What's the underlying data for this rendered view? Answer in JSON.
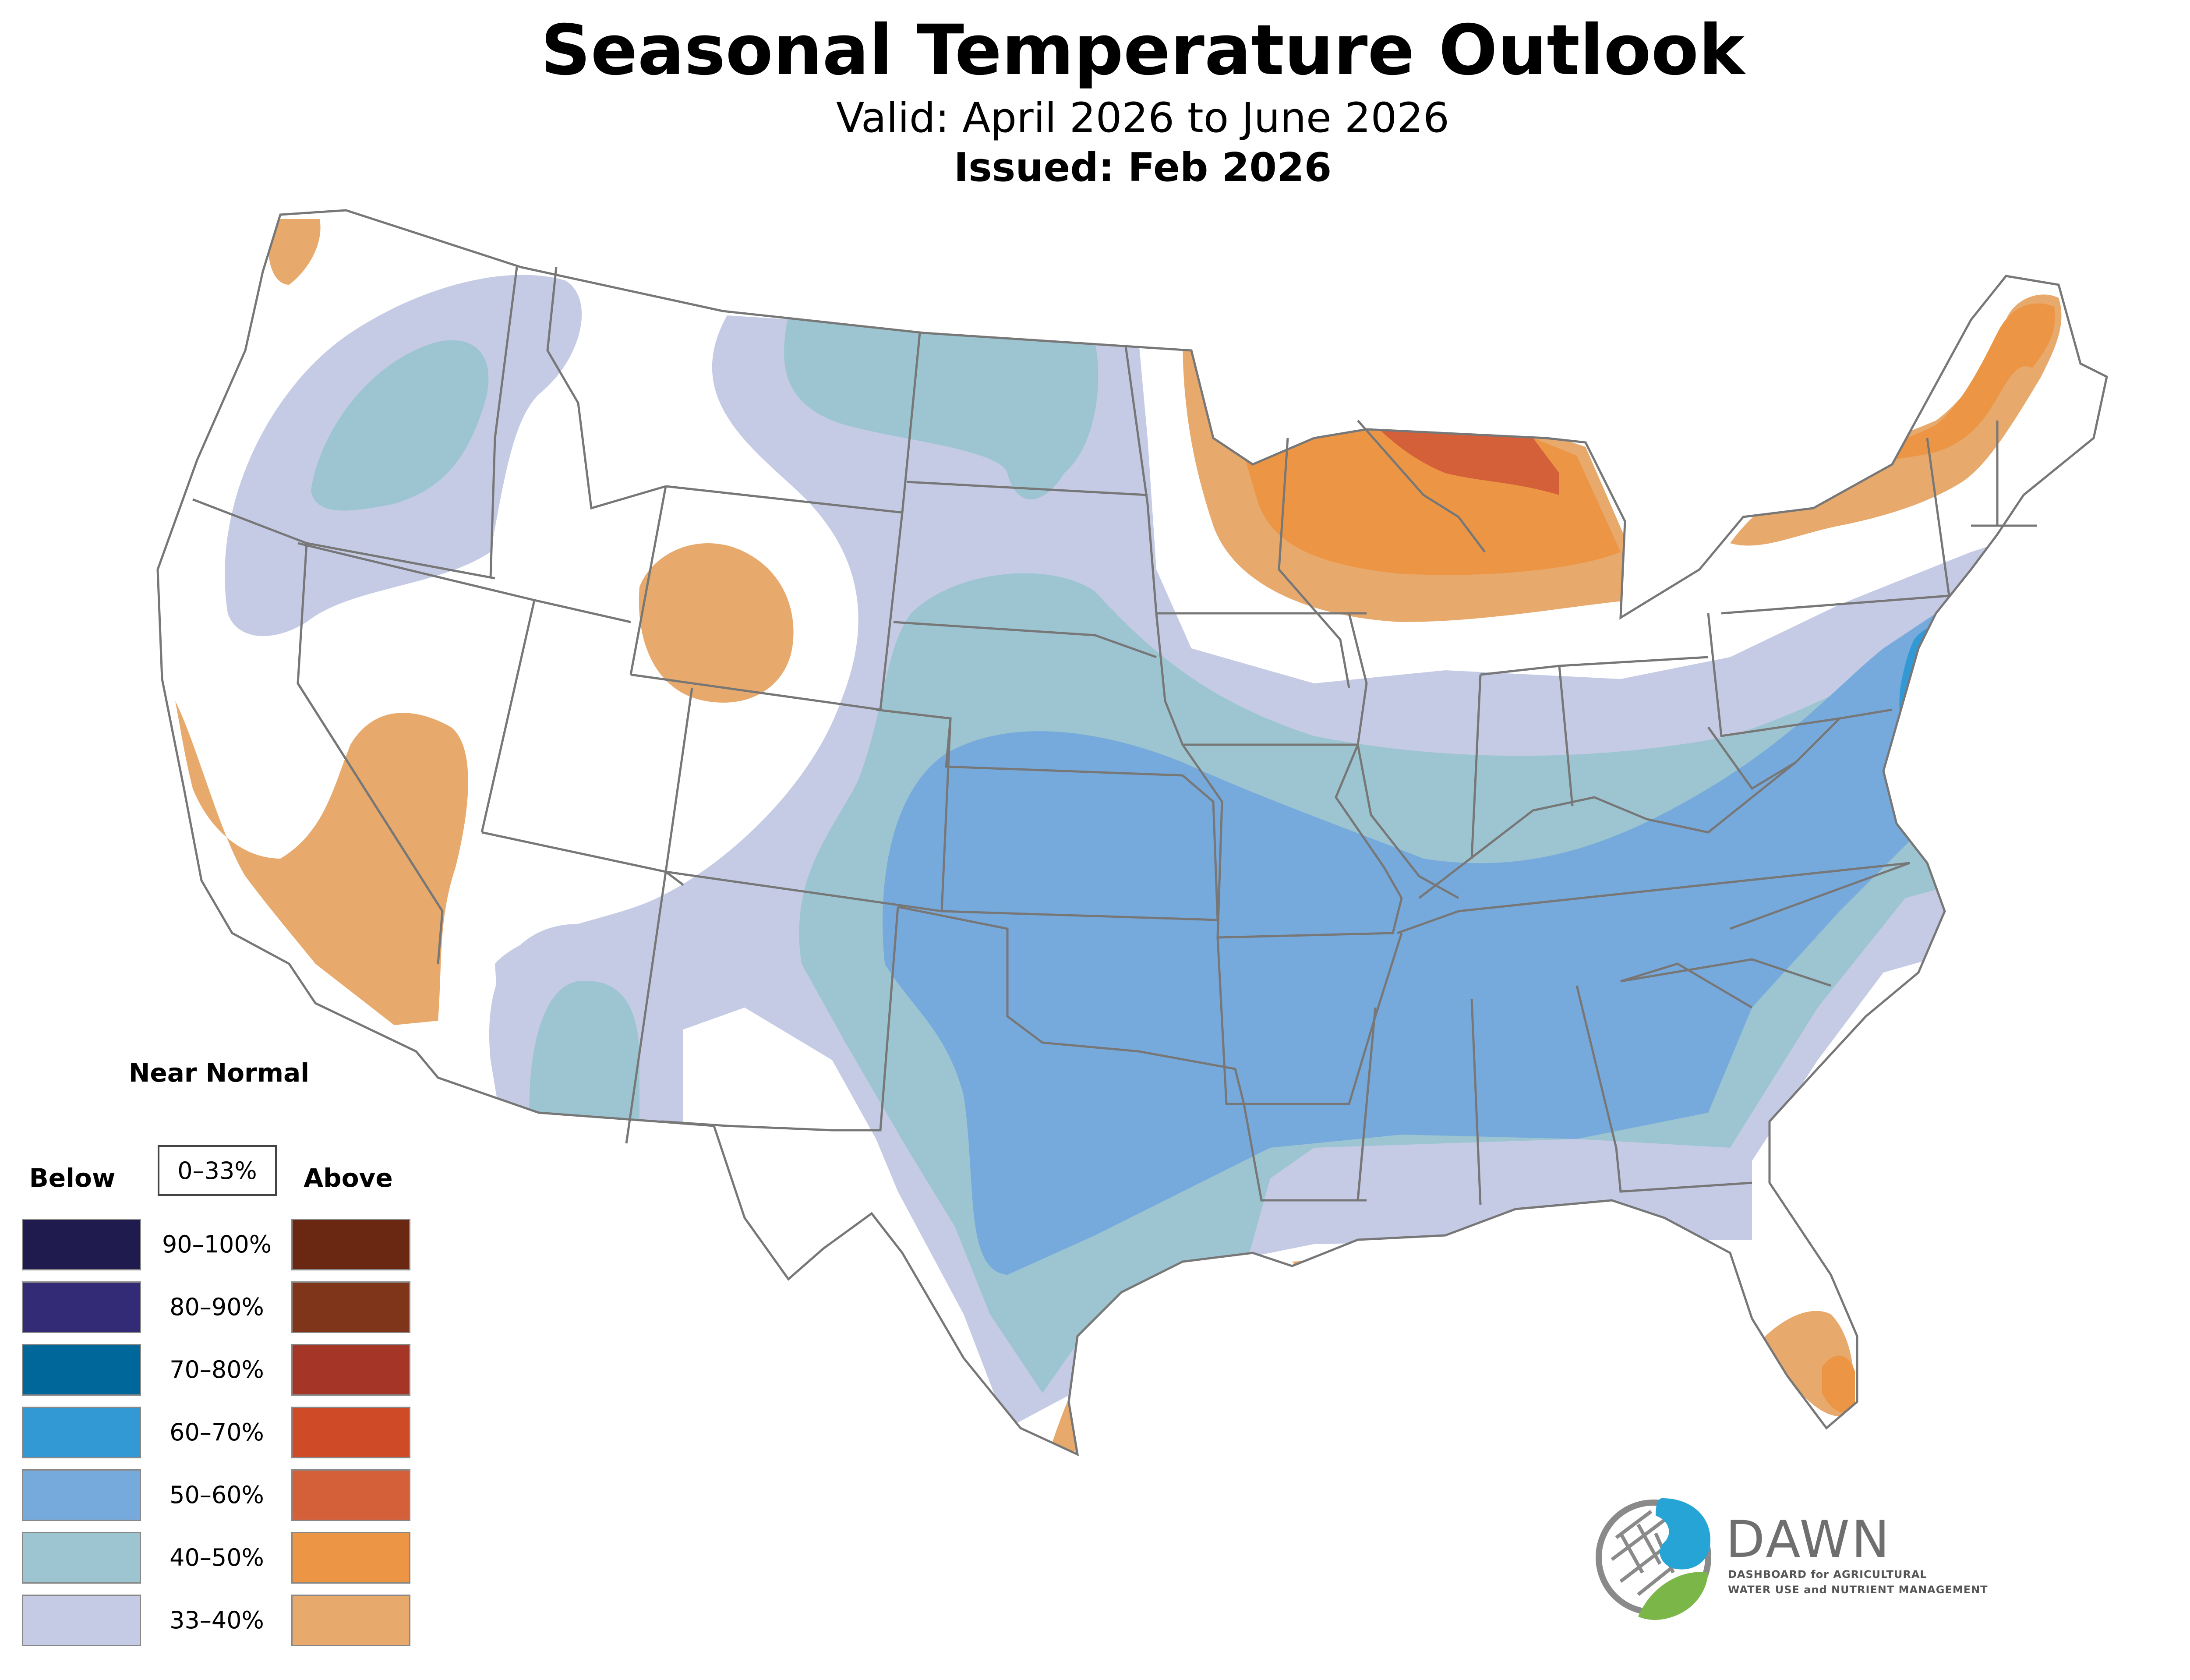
{
  "header": {
    "title": "Seasonal Temperature Outlook",
    "valid": "Valid: April 2026 to June 2026",
    "issued": "Issued: Feb 2026"
  },
  "legend": {
    "near_normal_title": "Near Normal",
    "near_normal_range": "0–33%",
    "below_title": "Below",
    "above_title": "Above",
    "classes": [
      {
        "label": "90–100%",
        "below_color": "#201b4f",
        "above_color": "#6a2712"
      },
      {
        "label": "80–90%",
        "below_color": "#332b76",
        "above_color": "#7f3519"
      },
      {
        "label": "70–80%",
        "below_color": "#00679a",
        "above_color": "#a53627"
      },
      {
        "label": "60–70%",
        "below_color": "#3399d4",
        "above_color": "#cf4b27"
      },
      {
        "label": "50–60%",
        "below_color": "#77aadc",
        "above_color": "#d4603a"
      },
      {
        "label": "40–50%",
        "below_color": "#9cc5d1",
        "above_color": "#ec9645"
      },
      {
        "label": "33–40%",
        "below_color": "#c5cbe5",
        "above_color": "#e7a96c"
      }
    ]
  },
  "map": {
    "region": "Contiguous United States",
    "categories": [
      {
        "category": "below",
        "range": "33–40%"
      },
      {
        "category": "below",
        "range": "40–50%"
      },
      {
        "category": "below",
        "range": "50–60%"
      },
      {
        "category": "below",
        "range": "60–70%"
      },
      {
        "category": "above",
        "range": "33–40%"
      },
      {
        "category": "above",
        "range": "40–50%"
      },
      {
        "category": "above",
        "range": "50–60%"
      }
    ],
    "colors": {
      "land": "#ffffff",
      "borders": "#777777",
      "b33": "#c5cbe5",
      "b40": "#9cc5d1",
      "b50": "#77aadc",
      "b60": "#3399d4",
      "a33": "#e7a96c",
      "a40": "#ec9645",
      "a50": "#d4603a"
    }
  },
  "logo": {
    "name": "DAWN",
    "subtitle_line1": "DASHBOARD for AGRICULTURAL",
    "subtitle_line2": "WATER USE and NUTRIENT MANAGEMENT",
    "colors": {
      "blue": "#27a4d6",
      "green": "#7ab648",
      "gray": "#8a8a8a"
    }
  }
}
